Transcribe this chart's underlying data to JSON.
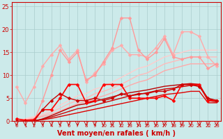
{
  "xlabel": "Vent moyen/en rafales ( km/h )",
  "xlim": [
    -0.5,
    23.5
  ],
  "ylim": [
    0,
    26
  ],
  "yticks": [
    0,
    5,
    10,
    15,
    20,
    25
  ],
  "xticks": [
    0,
    1,
    2,
    3,
    4,
    5,
    6,
    7,
    8,
    9,
    10,
    11,
    12,
    13,
    14,
    15,
    16,
    17,
    18,
    19,
    20,
    21,
    22,
    23
  ],
  "bg_color": "#cceaea",
  "grid_color": "#aacccc",
  "lines": [
    {
      "x": [
        0,
        1,
        2,
        3,
        4,
        5,
        6,
        7,
        8,
        9,
        10,
        11,
        12,
        13,
        14,
        15,
        16,
        17,
        18,
        19,
        20,
        21,
        22,
        23
      ],
      "y": [
        0.0,
        0.5,
        1.0,
        1.5,
        2.5,
        3.5,
        4.5,
        5.5,
        6.0,
        7.0,
        7.5,
        8.5,
        9.5,
        10.5,
        11.5,
        12.0,
        13.0,
        14.0,
        14.5,
        15.0,
        15.5,
        15.5,
        15.5,
        15.5
      ],
      "color": "#ffcccc",
      "lw": 1.0,
      "marker": null,
      "ms": 0
    },
    {
      "x": [
        0,
        1,
        2,
        3,
        4,
        5,
        6,
        7,
        8,
        9,
        10,
        11,
        12,
        13,
        14,
        15,
        16,
        17,
        18,
        19,
        20,
        21,
        22,
        23
      ],
      "y": [
        0.0,
        0.3,
        0.7,
        1.2,
        2.0,
        2.8,
        3.8,
        4.5,
        5.0,
        6.0,
        6.5,
        7.2,
        8.0,
        9.0,
        10.0,
        10.5,
        11.5,
        12.5,
        13.0,
        13.5,
        14.0,
        14.0,
        14.0,
        14.0
      ],
      "color": "#ffbbbb",
      "lw": 1.0,
      "marker": null,
      "ms": 0
    },
    {
      "x": [
        0,
        1,
        2,
        3,
        4,
        5,
        6,
        7,
        8,
        9,
        10,
        11,
        12,
        13,
        14,
        15,
        16,
        17,
        18,
        19,
        20,
        21,
        22,
        23
      ],
      "y": [
        0.0,
        0.2,
        0.5,
        1.0,
        1.5,
        2.2,
        3.0,
        3.8,
        4.3,
        5.0,
        5.5,
        6.2,
        7.0,
        7.8,
        8.5,
        9.0,
        10.0,
        11.0,
        11.5,
        12.0,
        12.5,
        12.5,
        12.5,
        12.5
      ],
      "color": "#ffaaaa",
      "lw": 1.0,
      "marker": null,
      "ms": 0
    },
    {
      "x": [
        0,
        1,
        2,
        3,
        4,
        5,
        6,
        7,
        8,
        9,
        10,
        11,
        12,
        13,
        14,
        15,
        16,
        17,
        18,
        19,
        20,
        21,
        22,
        23
      ],
      "y": [
        7.5,
        4.0,
        7.5,
        12.0,
        14.5,
        16.5,
        13.5,
        15.5,
        8.5,
        10.5,
        12.5,
        15.5,
        16.5,
        14.5,
        14.5,
        14.0,
        16.0,
        18.5,
        14.5,
        19.5,
        19.5,
        18.5,
        14.0,
        12.0
      ],
      "color": "#ffaaaa",
      "lw": 1.0,
      "marker": "D",
      "ms": 2.5
    },
    {
      "x": [
        0,
        1,
        2,
        3,
        4,
        5,
        6,
        7,
        8,
        9,
        10,
        11,
        12,
        13,
        14,
        15,
        16,
        17,
        18,
        19,
        20,
        21,
        22,
        23
      ],
      "y": [
        0.0,
        0.0,
        0.0,
        4.5,
        10.0,
        15.5,
        13.0,
        15.0,
        9.0,
        10.0,
        13.0,
        16.0,
        22.5,
        22.5,
        15.5,
        13.5,
        15.0,
        18.0,
        14.0,
        13.5,
        14.0,
        14.0,
        11.5,
        12.5
      ],
      "color": "#ff9999",
      "lw": 1.0,
      "marker": "D",
      "ms": 2.5
    },
    {
      "x": [
        0,
        1,
        2,
        3,
        4,
        5,
        6,
        7,
        8,
        9,
        10,
        11,
        12,
        13,
        14,
        15,
        16,
        17,
        18,
        19,
        20,
        21,
        22,
        23
      ],
      "y": [
        0.0,
        0.0,
        0.1,
        0.3,
        0.6,
        1.0,
        1.4,
        1.8,
        2.2,
        2.6,
        3.0,
        3.4,
        3.8,
        4.2,
        4.6,
        5.0,
        5.4,
        5.8,
        6.0,
        6.2,
        6.5,
        6.5,
        4.0,
        4.0
      ],
      "color": "#dd0000",
      "lw": 1.0,
      "marker": null,
      "ms": 0
    },
    {
      "x": [
        0,
        1,
        2,
        3,
        4,
        5,
        6,
        7,
        8,
        9,
        10,
        11,
        12,
        13,
        14,
        15,
        16,
        17,
        18,
        19,
        20,
        21,
        22,
        23
      ],
      "y": [
        0.0,
        0.0,
        0.1,
        0.4,
        0.9,
        1.5,
        2.1,
        2.7,
        3.0,
        3.5,
        4.0,
        4.5,
        5.0,
        5.5,
        5.8,
        6.2,
        6.6,
        7.0,
        7.2,
        7.5,
        7.8,
        7.8,
        4.5,
        4.2
      ],
      "color": "#cc0000",
      "lw": 1.0,
      "marker": null,
      "ms": 0
    },
    {
      "x": [
        0,
        1,
        2,
        3,
        4,
        5,
        6,
        7,
        8,
        9,
        10,
        11,
        12,
        13,
        14,
        15,
        16,
        17,
        18,
        19,
        20,
        21,
        22,
        23
      ],
      "y": [
        0.0,
        0.0,
        0.0,
        0.5,
        1.2,
        2.0,
        2.8,
        3.5,
        3.8,
        4.3,
        4.8,
        5.3,
        5.8,
        6.2,
        6.5,
        6.8,
        7.2,
        7.6,
        7.8,
        8.0,
        8.2,
        8.0,
        4.8,
        4.5
      ],
      "color": "#bb0000",
      "lw": 1.0,
      "marker": null,
      "ms": 0
    },
    {
      "x": [
        0,
        1,
        2,
        3,
        4,
        5,
        6,
        7,
        8,
        9,
        10,
        11,
        12,
        13,
        14,
        15,
        16,
        17,
        18,
        19,
        20,
        21,
        22,
        23
      ],
      "y": [
        0.5,
        0.2,
        0.3,
        2.5,
        2.5,
        5.0,
        8.0,
        8.0,
        4.0,
        4.5,
        8.0,
        8.0,
        8.0,
        5.0,
        5.0,
        5.0,
        5.0,
        5.5,
        4.5,
        8.0,
        8.0,
        8.0,
        4.5,
        4.5
      ],
      "color": "#ff0000",
      "lw": 1.2,
      "marker": "D",
      "ms": 2.5
    },
    {
      "x": [
        0,
        1,
        2,
        3,
        4,
        5,
        6,
        7,
        8,
        9,
        10,
        11,
        12,
        13,
        14,
        15,
        16,
        17,
        18,
        19,
        20,
        21,
        22,
        23
      ],
      "y": [
        0.0,
        0.0,
        0.0,
        2.5,
        4.5,
        6.0,
        5.0,
        4.5,
        4.5,
        5.0,
        4.5,
        5.0,
        6.0,
        5.5,
        6.0,
        6.0,
        6.5,
        6.5,
        7.0,
        8.0,
        8.0,
        7.5,
        5.0,
        4.5
      ],
      "color": "#cc0000",
      "lw": 1.0,
      "marker": "D",
      "ms": 2.5
    }
  ],
  "arrow_color": "#cc0000",
  "xlabel_color": "#cc0000",
  "xlabel_fontsize": 7,
  "tick_color": "#cc0000",
  "tick_fontsize": 6
}
